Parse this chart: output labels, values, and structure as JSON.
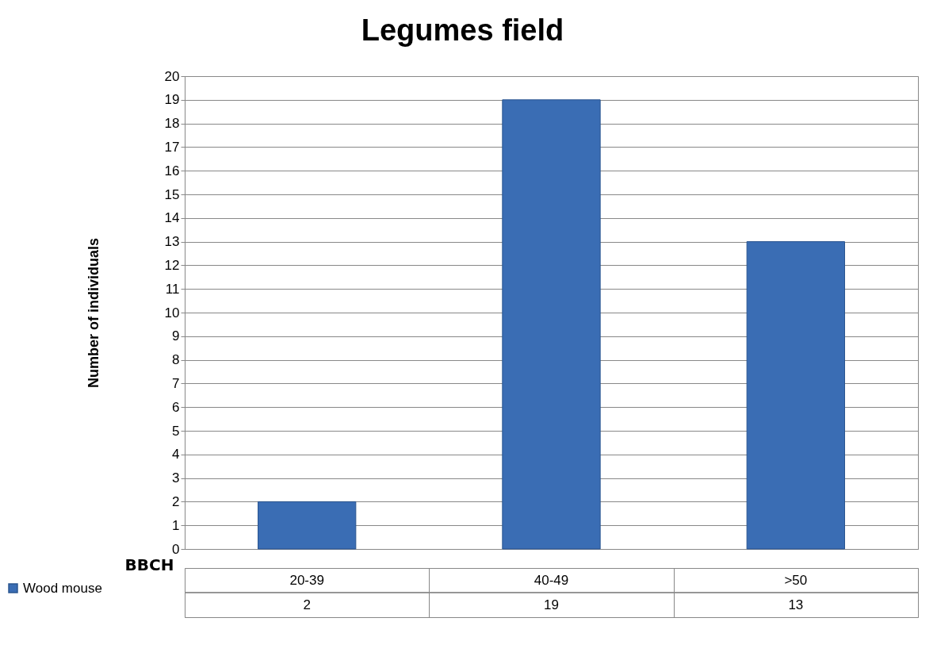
{
  "chart_data": {
    "type": "bar",
    "title": "Legumes field",
    "xlabel": "BBCH",
    "ylabel": "Number of individuals",
    "categories": [
      "20-39",
      "40-49",
      ">50"
    ],
    "series": [
      {
        "name": "Wood mouse",
        "color": "#3a6db4",
        "values": [
          2,
          19,
          13
        ]
      }
    ],
    "ylim": [
      0,
      20
    ],
    "yticks": [
      0,
      1,
      2,
      3,
      4,
      5,
      6,
      7,
      8,
      9,
      10,
      11,
      12,
      13,
      14,
      15,
      16,
      17,
      18,
      19,
      20
    ],
    "grid": "y",
    "legend": "bottom left",
    "data_labels": true
  }
}
